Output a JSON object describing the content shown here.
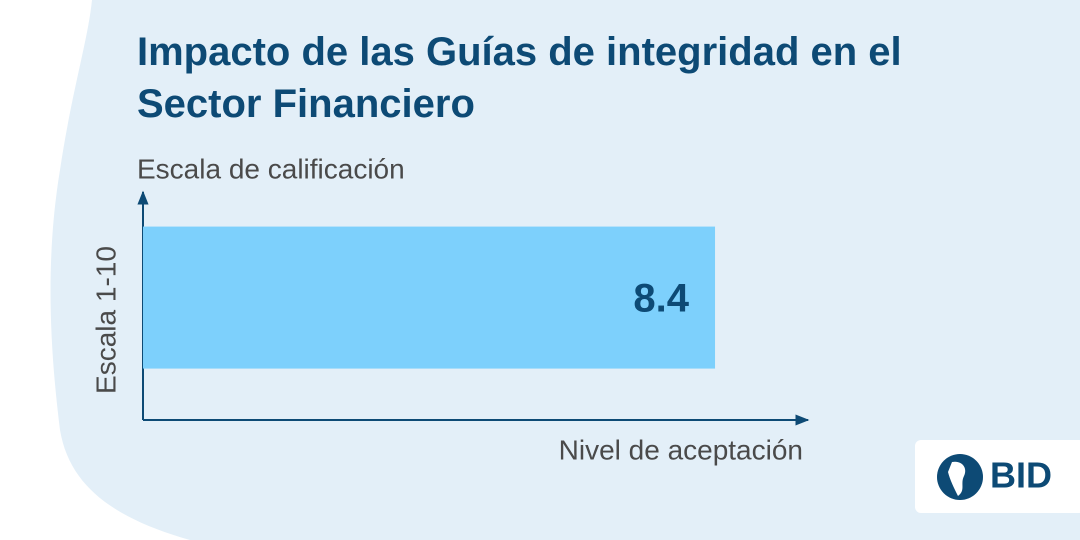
{
  "chart_data": {
    "type": "bar",
    "orientation": "horizontal",
    "title": "Impacto de las Guías de integridad en el Sector Financiero",
    "subtitle": "Escala de calificación",
    "y_label": "Escala 1-10",
    "x_label": "Nivel de aceptación",
    "categories": [
      null
    ],
    "values": [
      8.4
    ],
    "color": "#7dd0fc",
    "xlim": [
      0,
      10
    ],
    "logo": "BID"
  }
}
